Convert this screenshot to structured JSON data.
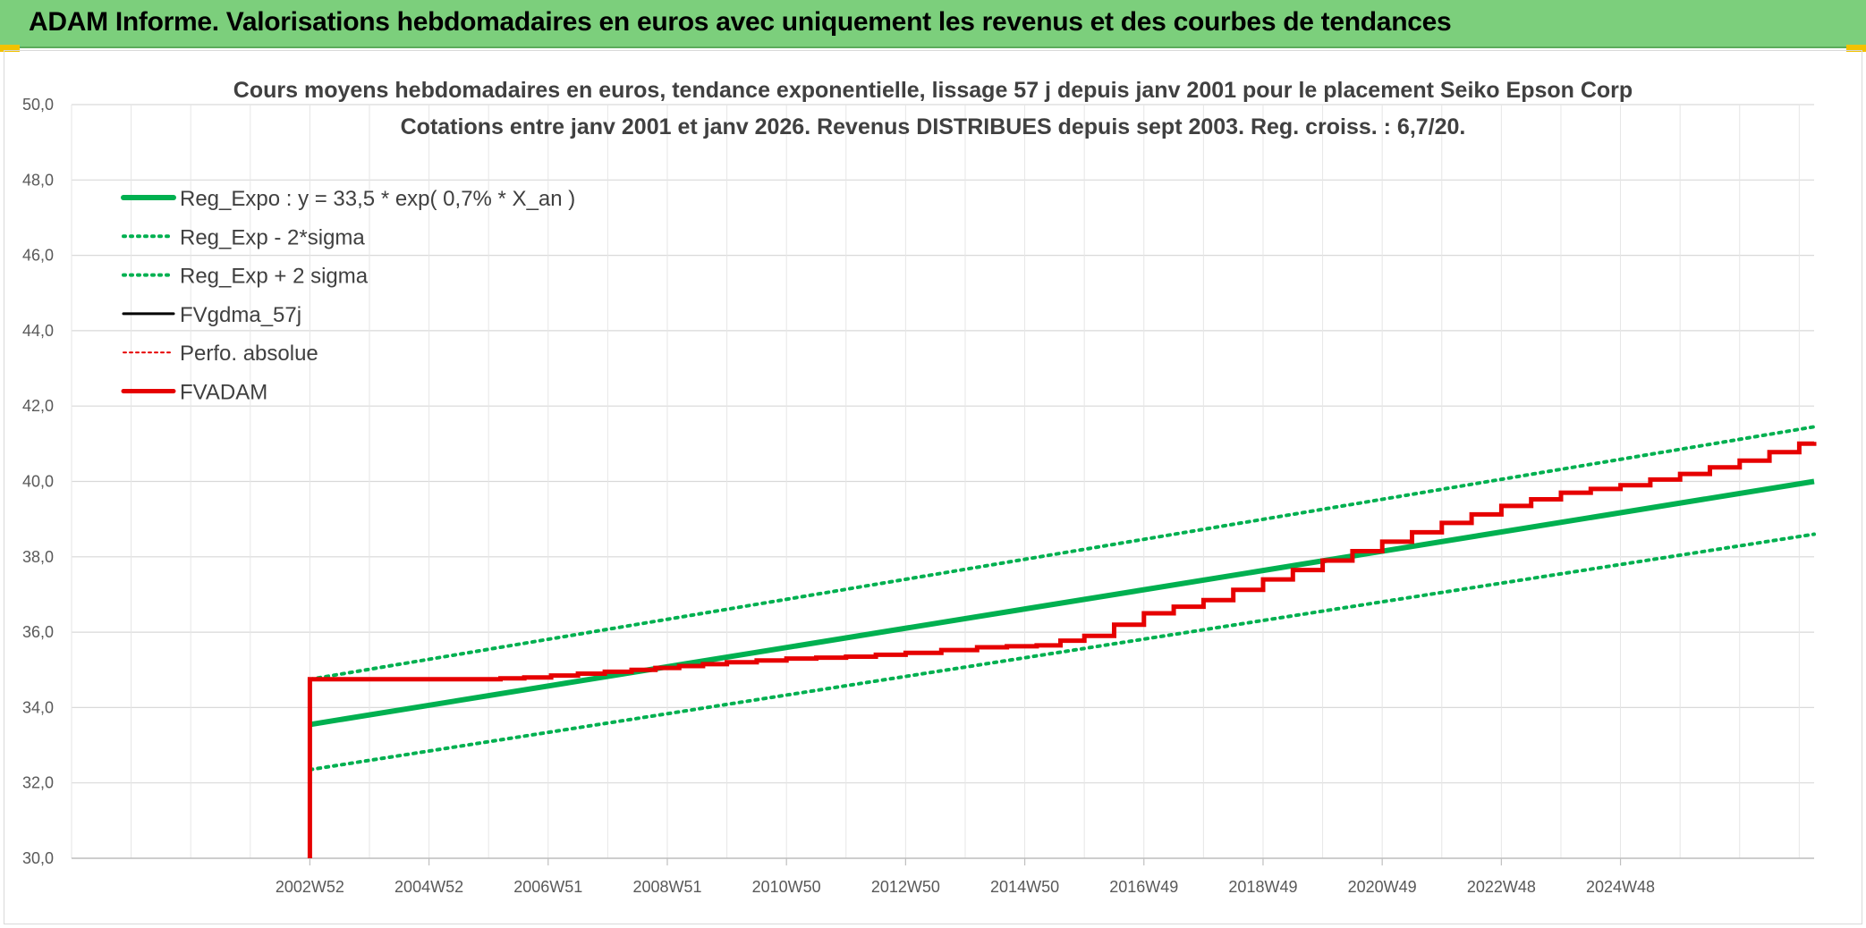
{
  "header": {
    "title": "ADAM Informe. Valorisations hebdomadaires en euros avec uniquement les revenus et des courbes de tendances"
  },
  "colors": {
    "header_bg": "#7ccf7c",
    "reg_green": "#00b050",
    "fv_red": "#e60000",
    "black": "#000000",
    "grid": "#d9d9d9",
    "accent_yellow": "#f2c200"
  },
  "chart_data": {
    "type": "line",
    "title_lines": [
      "Cours moyens hebdomadaires en euros, tendance exponentielle, lissage 57 j depuis janv 2001 pour le placement Seiko Epson Corp",
      "Cotations entre janv 2001 et janv 2026. Revenus DISTRIBUES depuis sept 2003. Reg. croiss. : 6,7/20."
    ],
    "ylim": [
      30,
      50
    ],
    "y_tick_step": 2,
    "y_tick_labels": [
      "30,0",
      "32,0",
      "34,0",
      "36,0",
      "38,0",
      "40,0",
      "42,0",
      "44,0",
      "46,0",
      "48,0",
      "50,0"
    ],
    "x_range": [
      2001.0,
      2030.25
    ],
    "x_tick_labels": [
      {
        "label": "2002W52",
        "x": 2005.0
      },
      {
        "label": "2004W52",
        "x": 2007.0
      },
      {
        "label": "2006W51",
        "x": 2009.0
      },
      {
        "label": "2008W51",
        "x": 2011.0
      },
      {
        "label": "2010W50",
        "x": 2013.0
      },
      {
        "label": "2012W50",
        "x": 2015.0
      },
      {
        "label": "2014W50",
        "x": 2017.0
      },
      {
        "label": "2016W49",
        "x": 2019.0
      },
      {
        "label": "2018W49",
        "x": 2021.0
      },
      {
        "label": "2020W49",
        "x": 2023.0
      },
      {
        "label": "2022W48",
        "x": 2025.0
      },
      {
        "label": "2024W48",
        "x": 2027.0
      }
    ],
    "legend": [
      {
        "label": "Reg_Expo : y = 33,5 * exp( 0,7% *  X_an )",
        "style": "solid",
        "color": "#00b050",
        "width": 6
      },
      {
        "label": "Reg_Exp - 2*sigma",
        "style": "dotted",
        "color": "#00b050",
        "width": 4
      },
      {
        "label": "Reg_Exp + 2 sigma",
        "style": "dotted",
        "color": "#00b050",
        "width": 4
      },
      {
        "label": "FVgdma_57j",
        "style": "solid",
        "color": "#000000",
        "width": 3
      },
      {
        "label": "Perfo. absolue",
        "style": "dotted",
        "color": "#e60000",
        "width": 2
      },
      {
        "label": "FVADAM",
        "style": "solid",
        "color": "#e60000",
        "width": 5
      }
    ],
    "series": [
      {
        "name": "Reg_Expo",
        "start_x": 2005.0,
        "x": [
          2005.0,
          2030.25
        ],
        "values": [
          33.55,
          40.0
        ]
      },
      {
        "name": "Reg_Exp - 2*sigma",
        "x": [
          2005.0,
          2030.25
        ],
        "values": [
          32.35,
          38.6
        ]
      },
      {
        "name": "Reg_Exp + 2 sigma",
        "x": [
          2005.0,
          2030.25
        ],
        "values": [
          34.75,
          41.45
        ]
      },
      {
        "name": "FVADAM",
        "x": [
          2005.0,
          2005.0,
          2007.8,
          2008.6,
          2009.5,
          2010.4,
          2011.2,
          2012.0,
          2013.0,
          2014.0,
          2015.0,
          2016.2,
          2017.2,
          2018.0,
          2019.0,
          2020.0,
          2021.0,
          2022.0,
          2023.0,
          2024.0,
          2025.0,
          2026.0,
          2027.0,
          2028.0,
          2029.0,
          2030.0,
          2030.25
        ],
        "values": [
          30.0,
          34.75,
          34.75,
          34.8,
          34.9,
          35.0,
          35.1,
          35.2,
          35.3,
          35.35,
          35.45,
          35.6,
          35.65,
          35.9,
          36.5,
          36.85,
          37.4,
          37.9,
          38.4,
          38.9,
          39.35,
          39.7,
          39.9,
          40.2,
          40.55,
          41.0,
          41.05
        ]
      }
    ]
  }
}
